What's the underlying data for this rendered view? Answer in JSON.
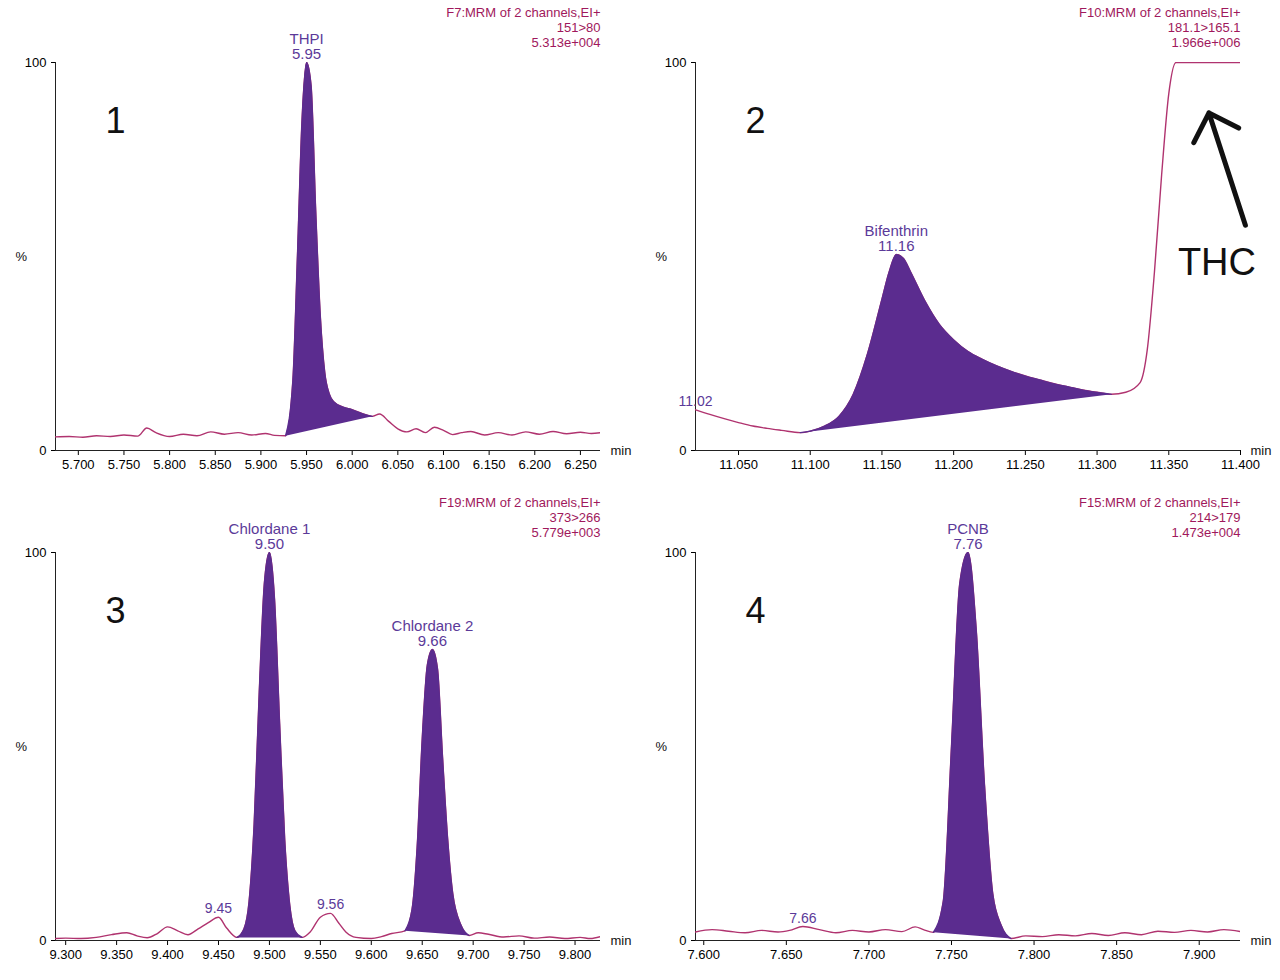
{
  "chart_data": [
    {
      "type": "line",
      "panel": "1",
      "header": [
        "F7:MRM of 2 channels,EI+",
        "151>80",
        "5.313e+004"
      ],
      "xlabel": "min",
      "ylabel": "%",
      "xlim": [
        5.675,
        6.272
      ],
      "xticks": [
        {
          "value": 5.7,
          "label": "5.700"
        },
        {
          "value": 5.75,
          "label": "5.750"
        },
        {
          "value": 5.8,
          "label": "5.800"
        },
        {
          "value": 5.85,
          "label": "5.850"
        },
        {
          "value": 5.9,
          "label": "5.900"
        },
        {
          "value": 5.95,
          "label": "5.950"
        },
        {
          "value": 6.0,
          "label": "6.000"
        },
        {
          "value": 6.05,
          "label": "6.050"
        },
        {
          "value": 6.1,
          "label": "6.100"
        },
        {
          "value": 6.15,
          "label": "6.150"
        },
        {
          "value": 6.2,
          "label": "6.200"
        },
        {
          "value": 6.25,
          "label": "6.250"
        }
      ],
      "ylim": [
        0,
        100
      ],
      "yticks": [
        0,
        100
      ],
      "color": "#b0336f",
      "x": [
        5.675,
        5.69,
        5.705,
        5.72,
        5.735,
        5.75,
        5.765,
        5.775,
        5.785,
        5.8,
        5.815,
        5.83,
        5.845,
        5.86,
        5.875,
        5.89,
        5.905,
        5.915,
        5.927,
        5.935,
        5.94,
        5.945,
        5.95,
        5.955,
        5.96,
        5.965,
        5.97,
        5.975,
        5.98,
        5.99,
        6.0,
        6.01,
        6.022,
        6.03,
        6.04,
        6.05,
        6.06,
        6.07,
        6.08,
        6.09,
        6.1,
        6.11,
        6.12,
        6.13,
        6.145,
        6.16,
        6.175,
        6.19,
        6.205,
        6.22,
        6.235,
        6.25,
        6.262,
        6.272
      ],
      "values": [
        3.5,
        3.6,
        3.4,
        3.8,
        3.6,
        4.0,
        3.7,
        5.8,
        4.6,
        3.6,
        4.2,
        3.8,
        4.8,
        4.2,
        4.6,
        4.0,
        4.4,
        3.9,
        3.8,
        18,
        50,
        85,
        100,
        94,
        62,
        35,
        20,
        14.5,
        12.5,
        11.2,
        10.5,
        9.6,
        8.8,
        9.4,
        7.5,
        5.6,
        4.8,
        5.6,
        4.6,
        6.0,
        5.2,
        4.1,
        4.6,
        4.9,
        4.0,
        4.6,
        4.0,
        4.8,
        4.2,
        4.9,
        4.3,
        4.7,
        4.4,
        4.6
      ],
      "peaks": [
        {
          "name": "THPI",
          "rt": 5.95,
          "label": "5.95",
          "start": 5.927,
          "end": 6.022,
          "color": "#5b2c8f"
        }
      ]
    },
    {
      "type": "line",
      "panel": "2",
      "header": [
        "F10:MRM of 2 channels,EI+",
        "181.1>165.1",
        "1.966e+006"
      ],
      "xlabel": "min",
      "ylabel": "%",
      "xlim": [
        11.02,
        11.4
      ],
      "xticks": [
        {
          "value": 11.05,
          "label": "11.050"
        },
        {
          "value": 11.1,
          "label": "11.100"
        },
        {
          "value": 11.15,
          "label": "11.150"
        },
        {
          "value": 11.2,
          "label": "11.200"
        },
        {
          "value": 11.25,
          "label": "11.250"
        },
        {
          "value": 11.3,
          "label": "11.300"
        },
        {
          "value": 11.35,
          "label": "11.350"
        },
        {
          "value": 11.4,
          "label": "11.400"
        }
      ],
      "ylim": [
        0,
        100
      ],
      "yticks": [
        0,
        100
      ],
      "color": "#b0336f",
      "x": [
        11.02,
        11.03,
        11.04,
        11.05,
        11.06,
        11.07,
        11.08,
        11.093,
        11.1,
        11.11,
        11.12,
        11.13,
        11.14,
        11.15,
        11.155,
        11.16,
        11.165,
        11.17,
        11.18,
        11.19,
        11.2,
        11.21,
        11.22,
        11.23,
        11.24,
        11.25,
        11.26,
        11.27,
        11.28,
        11.29,
        11.3,
        11.31,
        11.32,
        11.33,
        11.335,
        11.34,
        11.345,
        11.35,
        11.355,
        11.37,
        11.385,
        11.4
      ],
      "values": [
        10.5,
        9.3,
        8.2,
        7.2,
        6.3,
        5.7,
        5.2,
        4.6,
        5.0,
        6.3,
        8.8,
        14.5,
        25,
        39,
        46,
        50.5,
        49.5,
        46,
        38.5,
        32.5,
        28.5,
        25.5,
        23.5,
        21.8,
        20.4,
        19.2,
        18.2,
        17.2,
        16.4,
        15.6,
        15.0,
        14.5,
        15.0,
        17.5,
        26,
        46,
        71,
        92,
        100,
        100,
        100,
        100
      ],
      "peaks": [
        {
          "name": "Bifenthrin",
          "rt": 11.16,
          "label": "11.16",
          "start": 11.093,
          "end": 11.31,
          "color": "#5b2c8f"
        }
      ],
      "peak_labels": [
        {
          "x": 11.02,
          "label": "11.02"
        }
      ],
      "annotations": [
        {
          "text": "THC",
          "x": 11.378,
          "y": 87
        }
      ]
    },
    {
      "type": "line",
      "panel": "3",
      "header": [
        "F19:MRM of 2 channels,EI+",
        "373>266",
        "5.779e+003"
      ],
      "xlabel": "min",
      "ylabel": "%",
      "xlim": [
        9.29,
        9.825
      ],
      "xticks": [
        {
          "value": 9.3,
          "label": "9.300"
        },
        {
          "value": 9.35,
          "label": "9.350"
        },
        {
          "value": 9.4,
          "label": "9.400"
        },
        {
          "value": 9.45,
          "label": "9.450"
        },
        {
          "value": 9.5,
          "label": "9.500"
        },
        {
          "value": 9.55,
          "label": "9.550"
        },
        {
          "value": 9.6,
          "label": "9.600"
        },
        {
          "value": 9.65,
          "label": "9.650"
        },
        {
          "value": 9.7,
          "label": "9.700"
        },
        {
          "value": 9.75,
          "label": "9.750"
        },
        {
          "value": 9.8,
          "label": "9.800"
        }
      ],
      "ylim": [
        0,
        100
      ],
      "yticks": [
        0,
        100
      ],
      "color": "#b0336f",
      "x": [
        9.29,
        9.3,
        9.315,
        9.33,
        9.345,
        9.36,
        9.37,
        9.38,
        9.39,
        9.4,
        9.41,
        9.42,
        9.43,
        9.44,
        9.45,
        9.458,
        9.468,
        9.475,
        9.48,
        9.485,
        9.49,
        9.495,
        9.5,
        9.505,
        9.51,
        9.515,
        9.52,
        9.525,
        9.532,
        9.54,
        9.55,
        9.56,
        9.568,
        9.575,
        9.585,
        9.6,
        9.61,
        9.62,
        9.633,
        9.64,
        9.645,
        9.65,
        9.655,
        9.66,
        9.665,
        9.67,
        9.675,
        9.68,
        9.688,
        9.696,
        9.705,
        9.715,
        9.73,
        9.745,
        9.76,
        9.775,
        9.79,
        9.805,
        9.815,
        9.825
      ],
      "values": [
        0.5,
        0.6,
        0.5,
        0.8,
        1.5,
        2.0,
        1.2,
        0.7,
        1.8,
        3.5,
        2.5,
        1.5,
        3.0,
        4.6,
        6.0,
        3.2,
        0.8,
        3,
        10,
        30,
        64,
        92,
        100,
        88,
        56,
        26,
        9,
        2.5,
        0.8,
        2.2,
        6.0,
        7.0,
        4.5,
        2.2,
        0.8,
        0.5,
        1.0,
        1.8,
        2.5,
        8,
        24,
        52,
        71,
        75,
        70,
        47,
        26,
        12,
        4,
        1.3,
        2.0,
        1.6,
        0.9,
        1.2,
        0.6,
        0.9,
        0.5,
        0.8,
        0.5,
        1.0
      ],
      "peaks": [
        {
          "name": "Chlordane 1",
          "rt": 9.5,
          "label": "9.50",
          "start": 9.468,
          "end": 9.532,
          "color": "#5b2c8f"
        },
        {
          "name": "Chlordane 2",
          "rt": 9.66,
          "label": "9.66",
          "start": 9.633,
          "end": 9.696,
          "color": "#5b2c8f"
        }
      ],
      "peak_labels": [
        {
          "x": 9.45,
          "label": "9.45"
        },
        {
          "x": 9.56,
          "label": "9.56"
        }
      ]
    },
    {
      "type": "line",
      "panel": "4",
      "header": [
        "F15:MRM of 2 channels,EI+",
        "214>179",
        "1.473e+004"
      ],
      "xlabel": "min",
      "ylabel": "%",
      "xlim": [
        7.595,
        7.925
      ],
      "xticks": [
        {
          "value": 7.6,
          "label": "7.600"
        },
        {
          "value": 7.65,
          "label": "7.650"
        },
        {
          "value": 7.7,
          "label": "7.700"
        },
        {
          "value": 7.75,
          "label": "7.750"
        },
        {
          "value": 7.8,
          "label": "7.800"
        },
        {
          "value": 7.85,
          "label": "7.850"
        },
        {
          "value": 7.9,
          "label": "7.900"
        }
      ],
      "ylim": [
        0,
        100
      ],
      "yticks": [
        0,
        100
      ],
      "color": "#b0336f",
      "x": [
        7.595,
        7.605,
        7.615,
        7.625,
        7.635,
        7.645,
        7.652,
        7.66,
        7.67,
        7.68,
        7.69,
        7.7,
        7.71,
        7.72,
        7.728,
        7.733,
        7.739,
        7.745,
        7.75,
        7.755,
        7.76,
        7.765,
        7.77,
        7.775,
        7.78,
        7.786,
        7.795,
        7.805,
        7.815,
        7.825,
        7.835,
        7.845,
        7.855,
        7.865,
        7.875,
        7.885,
        7.895,
        7.905,
        7.915,
        7.925
      ],
      "values": [
        2.2,
        2.8,
        2.4,
        2.0,
        2.6,
        2.2,
        2.6,
        3.6,
        2.8,
        2.0,
        2.6,
        2.2,
        2.8,
        2.3,
        3.5,
        2.8,
        2.1,
        10,
        50,
        92,
        100,
        80,
        40,
        12,
        4,
        0.5,
        1.2,
        1.0,
        1.5,
        1.2,
        1.8,
        1.3,
        2.0,
        1.5,
        2.4,
        2.1,
        2.6,
        2.2,
        2.8,
        2.3
      ],
      "peaks": [
        {
          "name": "PCNB",
          "rt": 7.76,
          "label": "7.76",
          "start": 7.739,
          "end": 7.786,
          "color": "#5b2c8f"
        }
      ],
      "peak_labels": [
        {
          "x": 7.66,
          "label": "7.66"
        }
      ]
    }
  ]
}
